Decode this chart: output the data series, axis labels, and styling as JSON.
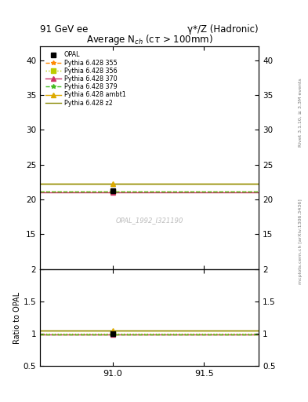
{
  "title_main": "91 GeV ee",
  "title_right": "γ*/Z (Hadronic)",
  "plot_title": "Average N_{ch} (cτ > 100mm)",
  "watermark": "OPAL_1992_I321190",
  "rivet_label": "Rivet 3.1.10, ≥ 3.3M events",
  "arxiv_label": "mcplots.cern.ch [arXiv:1306.3436]",
  "ylabel_ratio": "Ratio to OPAL",
  "xlim": [
    90.6,
    91.8
  ],
  "ylim_main": [
    10,
    42
  ],
  "ylim_ratio": [
    0.5,
    2.0
  ],
  "xticks": [
    91.0,
    91.5
  ],
  "yticks_main": [
    15,
    20,
    25,
    30,
    35,
    40
  ],
  "yticks_ratio": [
    0.5,
    1.0,
    1.5,
    2.0
  ],
  "data_x": 91.0,
  "data_y": 21.3,
  "data_err": 0.3,
  "mc_lines": [
    {
      "label": "Pythia 6.428 355",
      "color": "#ff8800",
      "linestyle": "--",
      "marker": "*",
      "y": 21.1,
      "ratio": 0.991
    },
    {
      "label": "Pythia 6.428 356",
      "color": "#bbcc00",
      "linestyle": ":",
      "marker": "s",
      "y": 21.1,
      "ratio": 0.994
    },
    {
      "label": "Pythia 6.428 370",
      "color": "#cc3366",
      "linestyle": "-",
      "marker": "^",
      "y": 21.0,
      "ratio": 0.985
    },
    {
      "label": "Pythia 6.428 379",
      "color": "#44bb22",
      "linestyle": "--",
      "marker": "*",
      "y": 21.1,
      "ratio": 0.992
    },
    {
      "label": "Pythia 6.428 ambt1",
      "color": "#ddaa00",
      "linestyle": "-",
      "marker": "^",
      "y": 22.3,
      "ratio": 1.047
    },
    {
      "label": "Pythia 6.428 z2",
      "color": "#888800",
      "linestyle": "-",
      "marker": null,
      "y": 22.3,
      "ratio": 1.047
    }
  ],
  "bg_color": "#ffffff"
}
